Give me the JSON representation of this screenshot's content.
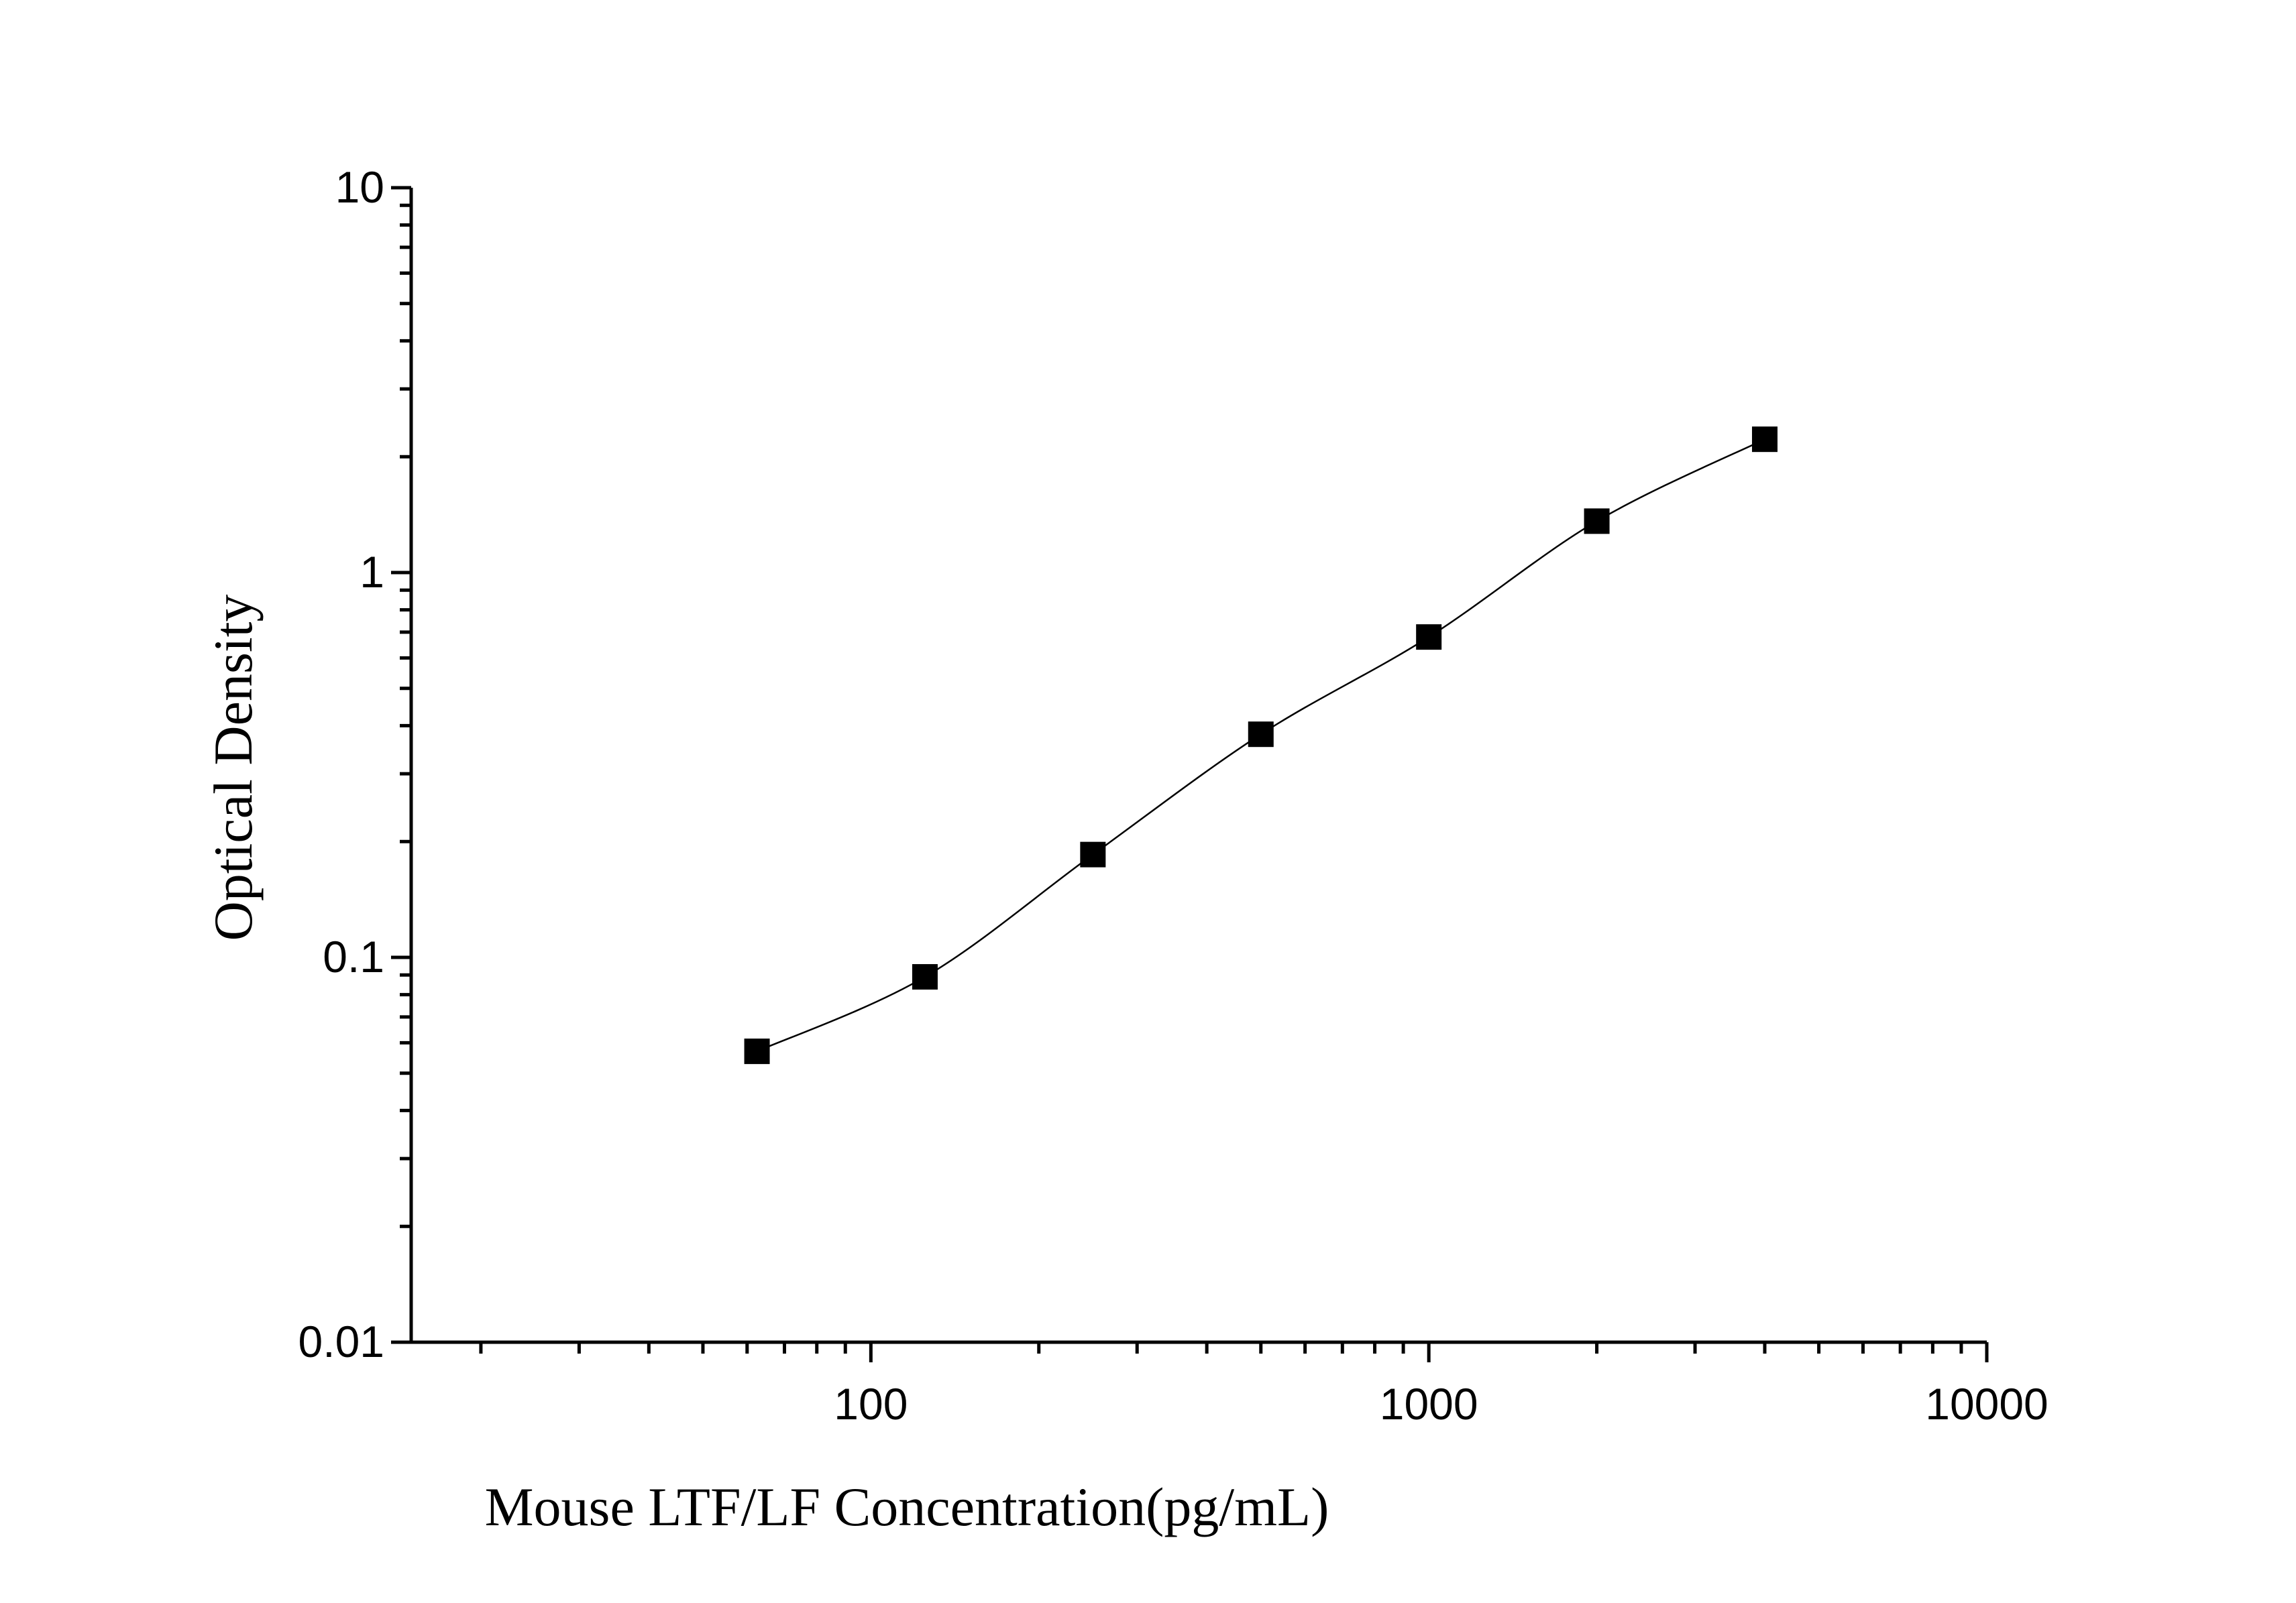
{
  "chart_data": {
    "type": "scatter",
    "xlabel": "Mouse LTF/LF Concentration(pg/mL)",
    "ylabel": "Optical Density",
    "x_scale": "log",
    "y_scale": "log",
    "xlim": [
      15,
      10000
    ],
    "ylim": [
      0.01,
      10
    ],
    "x_tick_labels": [
      "100",
      "1000",
      "10000"
    ],
    "y_tick_labels": [
      "0.01",
      "0.1",
      "1",
      "10"
    ],
    "grid": false,
    "legend": "none",
    "series": [
      {
        "x": [
          62.5,
          125,
          250,
          500,
          1000,
          2000,
          4000
        ],
        "y": [
          0.057,
          0.089,
          0.185,
          0.38,
          0.68,
          1.36,
          2.22
        ],
        "marker": "square",
        "line": "smooth",
        "color": "#000000"
      }
    ]
  }
}
